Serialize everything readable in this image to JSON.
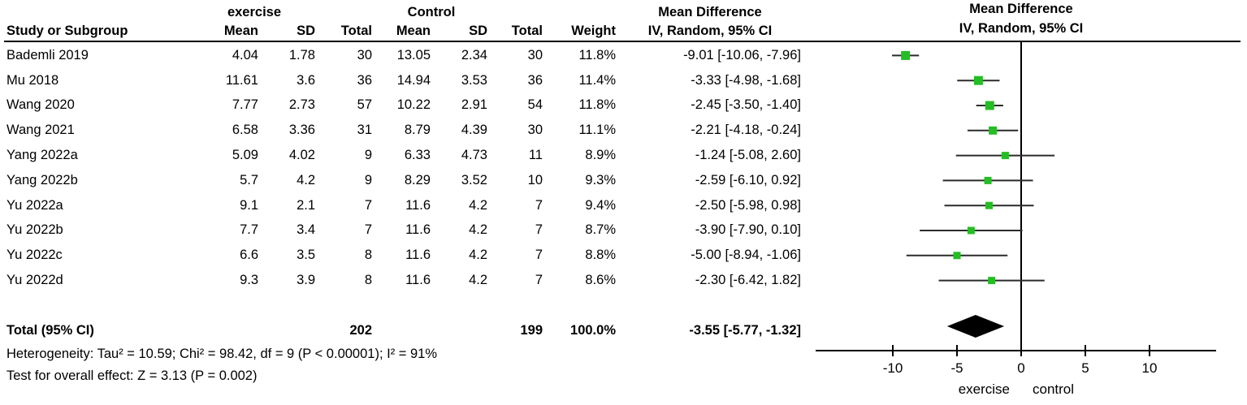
{
  "colors": {
    "marker": "#24bd24",
    "ci_line": "#2b2b2b",
    "axis": "#000000",
    "diamond": "#000000",
    "background": "#ffffff",
    "text": "#000000"
  },
  "headers": {
    "study": "Study or Subgroup",
    "group_experimental": "exercise",
    "group_control": "Control",
    "mean": "Mean",
    "sd": "SD",
    "total": "Total",
    "weight": "Weight",
    "effect": "Mean Difference",
    "effect_method": "IV, Random, 95% CI"
  },
  "chart_data": {
    "type": "forest",
    "effect_label": "Mean Difference",
    "method_label": "IV, Random, 95% CI",
    "group_labels": {
      "experimental": "exercise",
      "control": "Control"
    },
    "axis": {
      "ticks": [
        -10,
        -5,
        0,
        5,
        10
      ],
      "range": [
        -16,
        15.3
      ],
      "favours_left": "exercise",
      "favours_right": "control",
      "grid": false
    },
    "studies": [
      {
        "name": "Bademli 2019",
        "exp_mean": 4.04,
        "exp_sd": 1.78,
        "exp_total": 30,
        "ctl_mean": 13.05,
        "ctl_sd": 2.34,
        "ctl_total": 30,
        "weight_pct": 11.8,
        "est": -9.01,
        "ci_low": -10.06,
        "ci_high": -7.96
      },
      {
        "name": "Mu 2018",
        "exp_mean": 11.61,
        "exp_sd": 3.6,
        "exp_total": 36,
        "ctl_mean": 14.94,
        "ctl_sd": 3.53,
        "ctl_total": 36,
        "weight_pct": 11.4,
        "est": -3.33,
        "ci_low": -4.98,
        "ci_high": -1.68
      },
      {
        "name": "Wang 2020",
        "exp_mean": 7.77,
        "exp_sd": 2.73,
        "exp_total": 57,
        "ctl_mean": 10.22,
        "ctl_sd": 2.91,
        "ctl_total": 54,
        "weight_pct": 11.8,
        "est": -2.45,
        "ci_low": -3.5,
        "ci_high": -1.4
      },
      {
        "name": "Wang 2021",
        "exp_mean": 6.58,
        "exp_sd": 3.36,
        "exp_total": 31,
        "ctl_mean": 8.79,
        "ctl_sd": 4.39,
        "ctl_total": 30,
        "weight_pct": 11.1,
        "est": -2.21,
        "ci_low": -4.18,
        "ci_high": -0.24
      },
      {
        "name": "Yang 2022a",
        "exp_mean": 5.09,
        "exp_sd": 4.02,
        "exp_total": 9,
        "ctl_mean": 6.33,
        "ctl_sd": 4.73,
        "ctl_total": 11,
        "weight_pct": 8.9,
        "est": -1.24,
        "ci_low": -5.08,
        "ci_high": 2.6
      },
      {
        "name": "Yang 2022b",
        "exp_mean": 5.7,
        "exp_sd": 4.2,
        "exp_total": 9,
        "ctl_mean": 8.29,
        "ctl_sd": 3.52,
        "ctl_total": 10,
        "weight_pct": 9.3,
        "est": -2.59,
        "ci_low": -6.1,
        "ci_high": 0.92
      },
      {
        "name": "Yu 2022a",
        "exp_mean": 9.1,
        "exp_sd": 2.1,
        "exp_total": 7,
        "ctl_mean": 11.6,
        "ctl_sd": 4.2,
        "ctl_total": 7,
        "weight_pct": 9.4,
        "est": -2.5,
        "ci_low": -5.98,
        "ci_high": 0.98
      },
      {
        "name": "Yu 2022b",
        "exp_mean": 7.7,
        "exp_sd": 3.4,
        "exp_total": 7,
        "ctl_mean": 11.6,
        "ctl_sd": 4.2,
        "ctl_total": 7,
        "weight_pct": 8.7,
        "est": -3.9,
        "ci_low": -7.9,
        "ci_high": 0.1
      },
      {
        "name": "Yu 2022c",
        "exp_mean": 6.6,
        "exp_sd": 3.5,
        "exp_total": 8,
        "ctl_mean": 11.6,
        "ctl_sd": 4.2,
        "ctl_total": 7,
        "weight_pct": 8.8,
        "est": -5.0,
        "ci_low": -8.94,
        "ci_high": -1.06
      },
      {
        "name": "Yu 2022d",
        "exp_mean": 9.3,
        "exp_sd": 3.9,
        "exp_total": 8,
        "ctl_mean": 11.6,
        "ctl_sd": 4.2,
        "ctl_total": 7,
        "weight_pct": 8.6,
        "est": -2.3,
        "ci_low": -6.42,
        "ci_high": 1.82
      }
    ],
    "total": {
      "label": "Total (95% CI)",
      "exp_total": 202,
      "ctl_total": 199,
      "weight_pct": 100.0,
      "est": -3.55,
      "ci_low": -5.77,
      "ci_high": -1.32
    },
    "heterogeneity": "Heterogeneity: Tau² = 10.59; Chi² = 98.42, df = 9 (P < 0.00001); I² = 91%",
    "overall_effect": "Test for overall effect: Z = 3.13 (P = 0.002)"
  }
}
